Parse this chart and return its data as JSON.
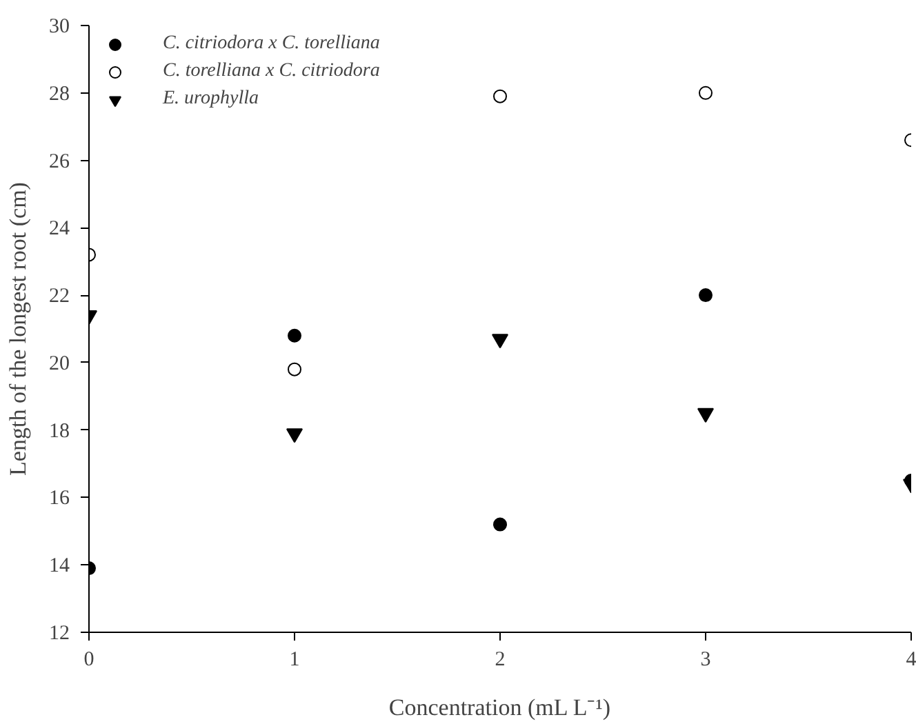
{
  "chart_data": {
    "type": "scatter",
    "xlabel": "Concentration (mL L⁻¹)",
    "ylabel": "Length of the longest root (cm)",
    "x": [
      0,
      1,
      2,
      3,
      4
    ],
    "series": [
      {
        "name": "C. citriodora x C. torelliana",
        "color": "#000000",
        "marker": "circle",
        "values": [
          13.9,
          20.8,
          15.2,
          22.0,
          16.5
        ]
      },
      {
        "name": "C. torelliana x C. citriodora",
        "color": "#ffffff",
        "marker": "circle",
        "values": [
          23.2,
          19.8,
          27.9,
          28.0,
          26.6
        ]
      },
      {
        "name": "E. urophylla",
        "color": "#000000",
        "marker": "triangle",
        "values": [
          21.4,
          17.9,
          20.7,
          18.5,
          16.4
        ]
      }
    ],
    "xlim": [
      0,
      4
    ],
    "xticks": [
      0,
      1,
      2,
      3,
      4
    ],
    "ylim": [
      12,
      30
    ],
    "yticks": [
      12,
      14,
      16,
      18,
      20,
      22,
      24,
      26,
      28,
      30
    ],
    "grid": false,
    "legend": "top left"
  }
}
